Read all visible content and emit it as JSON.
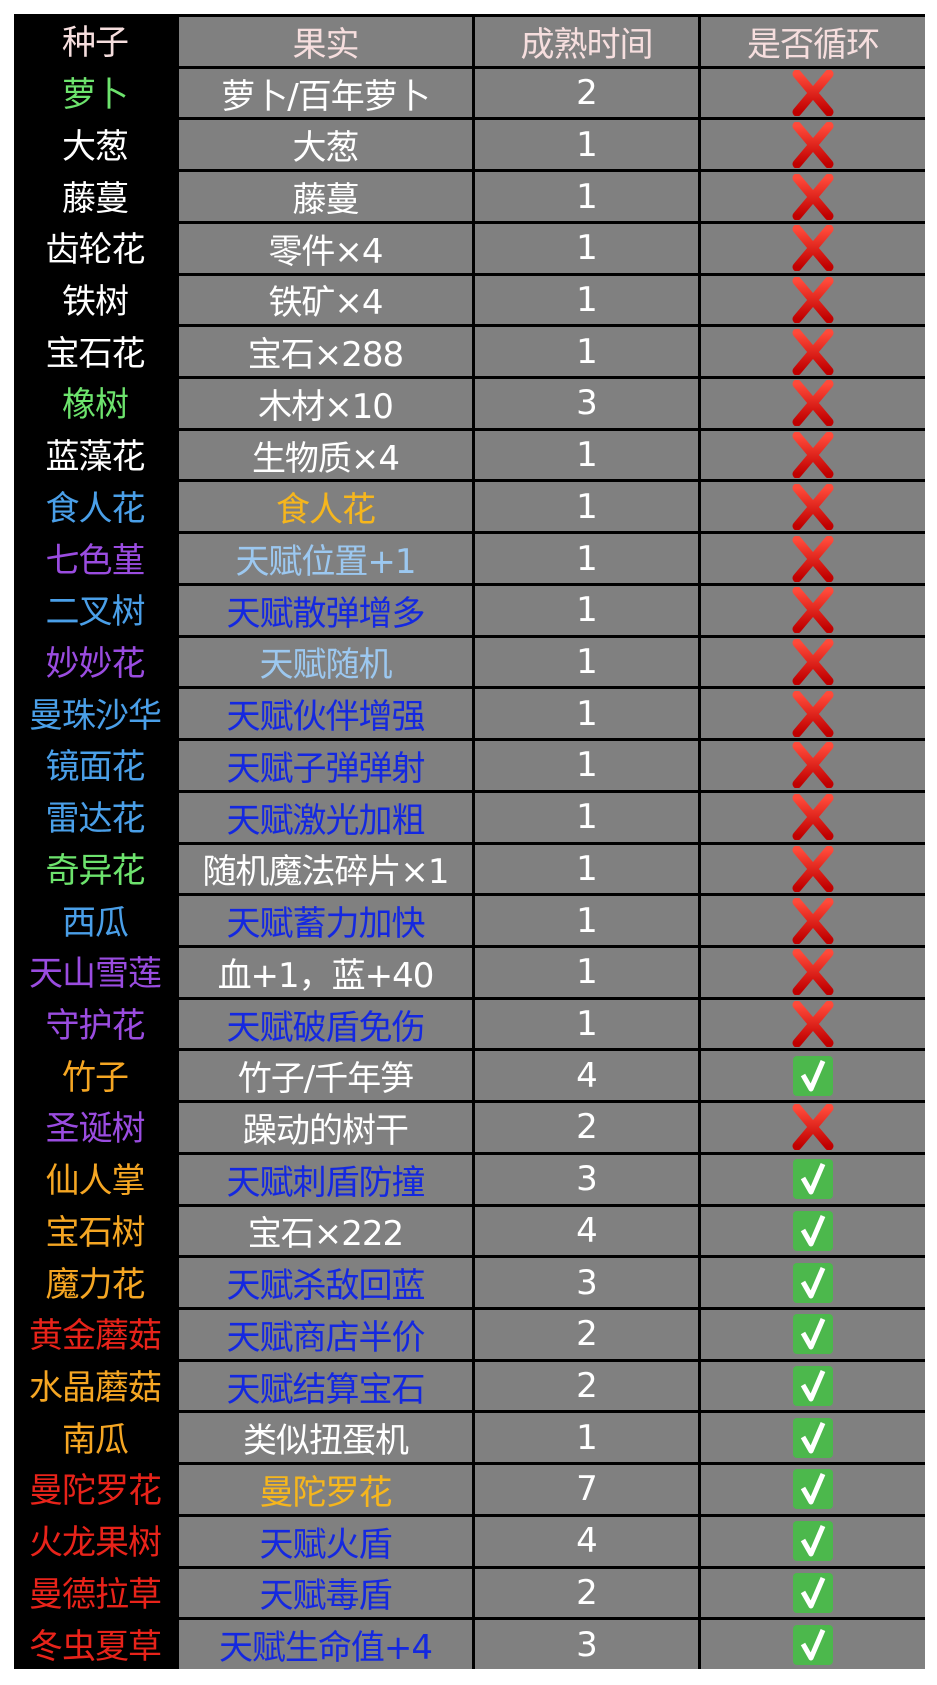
{
  "colors": {
    "white": "#ffffff",
    "green": "#6de36d",
    "blue": "#4a9fe8",
    "purple": "#9a4ce0",
    "orange": "#f5a623",
    "red": "#e8231a",
    "fruit_orange": "#f6b61d",
    "light_blue": "#9cc8f0",
    "deep_blue": "#1428e0",
    "header": "#f6dede",
    "cell_bg": "#808080"
  },
  "header": {
    "seed": "种子",
    "fruit": "果实",
    "time": "成熟时间",
    "loop": "是否循环"
  },
  "rows": [
    {
      "seed": "萝卜",
      "seed_color": "green",
      "fruit": "萝卜/百年萝卜",
      "fruit_color": "white",
      "time": "2",
      "loop": false
    },
    {
      "seed": "大葱",
      "seed_color": "white",
      "fruit": "大葱",
      "fruit_color": "white",
      "time": "1",
      "loop": false
    },
    {
      "seed": "藤蔓",
      "seed_color": "white",
      "fruit": "藤蔓",
      "fruit_color": "white",
      "time": "1",
      "loop": false
    },
    {
      "seed": "齿轮花",
      "seed_color": "white",
      "fruit": "零件×4",
      "fruit_color": "white",
      "time": "1",
      "loop": false
    },
    {
      "seed": "铁树",
      "seed_color": "white",
      "fruit": "铁矿×4",
      "fruit_color": "white",
      "time": "1",
      "loop": false
    },
    {
      "seed": "宝石花",
      "seed_color": "white",
      "fruit": "宝石×288",
      "fruit_color": "white",
      "time": "1",
      "loop": false
    },
    {
      "seed": "橡树",
      "seed_color": "green",
      "fruit": "木材×10",
      "fruit_color": "white",
      "time": "3",
      "loop": false
    },
    {
      "seed": "蓝藻花",
      "seed_color": "white",
      "fruit": "生物质×4",
      "fruit_color": "white",
      "time": "1",
      "loop": false
    },
    {
      "seed": "食人花",
      "seed_color": "blue",
      "fruit": "食人花",
      "fruit_color": "fruit_orange",
      "time": "1",
      "loop": false
    },
    {
      "seed": "七色堇",
      "seed_color": "purple",
      "fruit": "天赋位置+1",
      "fruit_color": "light_blue",
      "time": "1",
      "loop": false
    },
    {
      "seed": "二叉树",
      "seed_color": "blue",
      "fruit": "天赋散弹增多",
      "fruit_color": "deep_blue",
      "time": "1",
      "loop": false
    },
    {
      "seed": "妙妙花",
      "seed_color": "purple",
      "fruit": "天赋随机",
      "fruit_color": "light_blue",
      "time": "1",
      "loop": false
    },
    {
      "seed": "曼珠沙华",
      "seed_color": "blue",
      "fruit": "天赋伙伴增强",
      "fruit_color": "deep_blue",
      "time": "1",
      "loop": false
    },
    {
      "seed": "镜面花",
      "seed_color": "blue",
      "fruit": "天赋子弹弹射",
      "fruit_color": "deep_blue",
      "time": "1",
      "loop": false
    },
    {
      "seed": "雷达花",
      "seed_color": "blue",
      "fruit": "天赋激光加粗",
      "fruit_color": "deep_blue",
      "time": "1",
      "loop": false
    },
    {
      "seed": "奇异花",
      "seed_color": "green",
      "fruit": "随机魔法碎片×1",
      "fruit_color": "white",
      "time": "1",
      "loop": false
    },
    {
      "seed": "西瓜",
      "seed_color": "blue",
      "fruit": "天赋蓄力加快",
      "fruit_color": "deep_blue",
      "time": "1",
      "loop": false
    },
    {
      "seed": "天山雪莲",
      "seed_color": "purple",
      "fruit": "血+1，蓝+40",
      "fruit_color": "white",
      "time": "1",
      "loop": false
    },
    {
      "seed": "守护花",
      "seed_color": "purple",
      "fruit": "天赋破盾免伤",
      "fruit_color": "deep_blue",
      "time": "1",
      "loop": false
    },
    {
      "seed": "竹子",
      "seed_color": "orange",
      "fruit": "竹子/千年笋",
      "fruit_color": "white",
      "time": "4",
      "loop": true
    },
    {
      "seed": "圣诞树",
      "seed_color": "purple",
      "fruit": "躁动的树干",
      "fruit_color": "white",
      "time": "2",
      "loop": false
    },
    {
      "seed": "仙人掌",
      "seed_color": "orange",
      "fruit": "天赋刺盾防撞",
      "fruit_color": "deep_blue",
      "time": "3",
      "loop": true
    },
    {
      "seed": "宝石树",
      "seed_color": "orange",
      "fruit": "宝石×222",
      "fruit_color": "white",
      "time": "4",
      "loop": true
    },
    {
      "seed": "魔力花",
      "seed_color": "orange",
      "fruit": "天赋杀敌回蓝",
      "fruit_color": "deep_blue",
      "time": "3",
      "loop": true
    },
    {
      "seed": "黄金蘑菇",
      "seed_color": "red",
      "fruit": "天赋商店半价",
      "fruit_color": "deep_blue",
      "time": "2",
      "loop": true
    },
    {
      "seed": "水晶蘑菇",
      "seed_color": "orange",
      "fruit": "天赋结算宝石",
      "fruit_color": "deep_blue",
      "time": "2",
      "loop": true
    },
    {
      "seed": "南瓜",
      "seed_color": "orange",
      "fruit": "类似扭蛋机",
      "fruit_color": "white",
      "time": "1",
      "loop": true
    },
    {
      "seed": "曼陀罗花",
      "seed_color": "red",
      "fruit": "曼陀罗花",
      "fruit_color": "fruit_orange",
      "time": "7",
      "loop": true
    },
    {
      "seed": "火龙果树",
      "seed_color": "red",
      "fruit": "天赋火盾",
      "fruit_color": "deep_blue",
      "time": "4",
      "loop": true
    },
    {
      "seed": "曼德拉草",
      "seed_color": "red",
      "fruit": "天赋毒盾",
      "fruit_color": "deep_blue",
      "time": "2",
      "loop": true
    },
    {
      "seed": "冬虫夏草",
      "seed_color": "red",
      "fruit": "天赋生命值+4",
      "fruit_color": "deep_blue",
      "time": "3",
      "loop": true
    }
  ]
}
